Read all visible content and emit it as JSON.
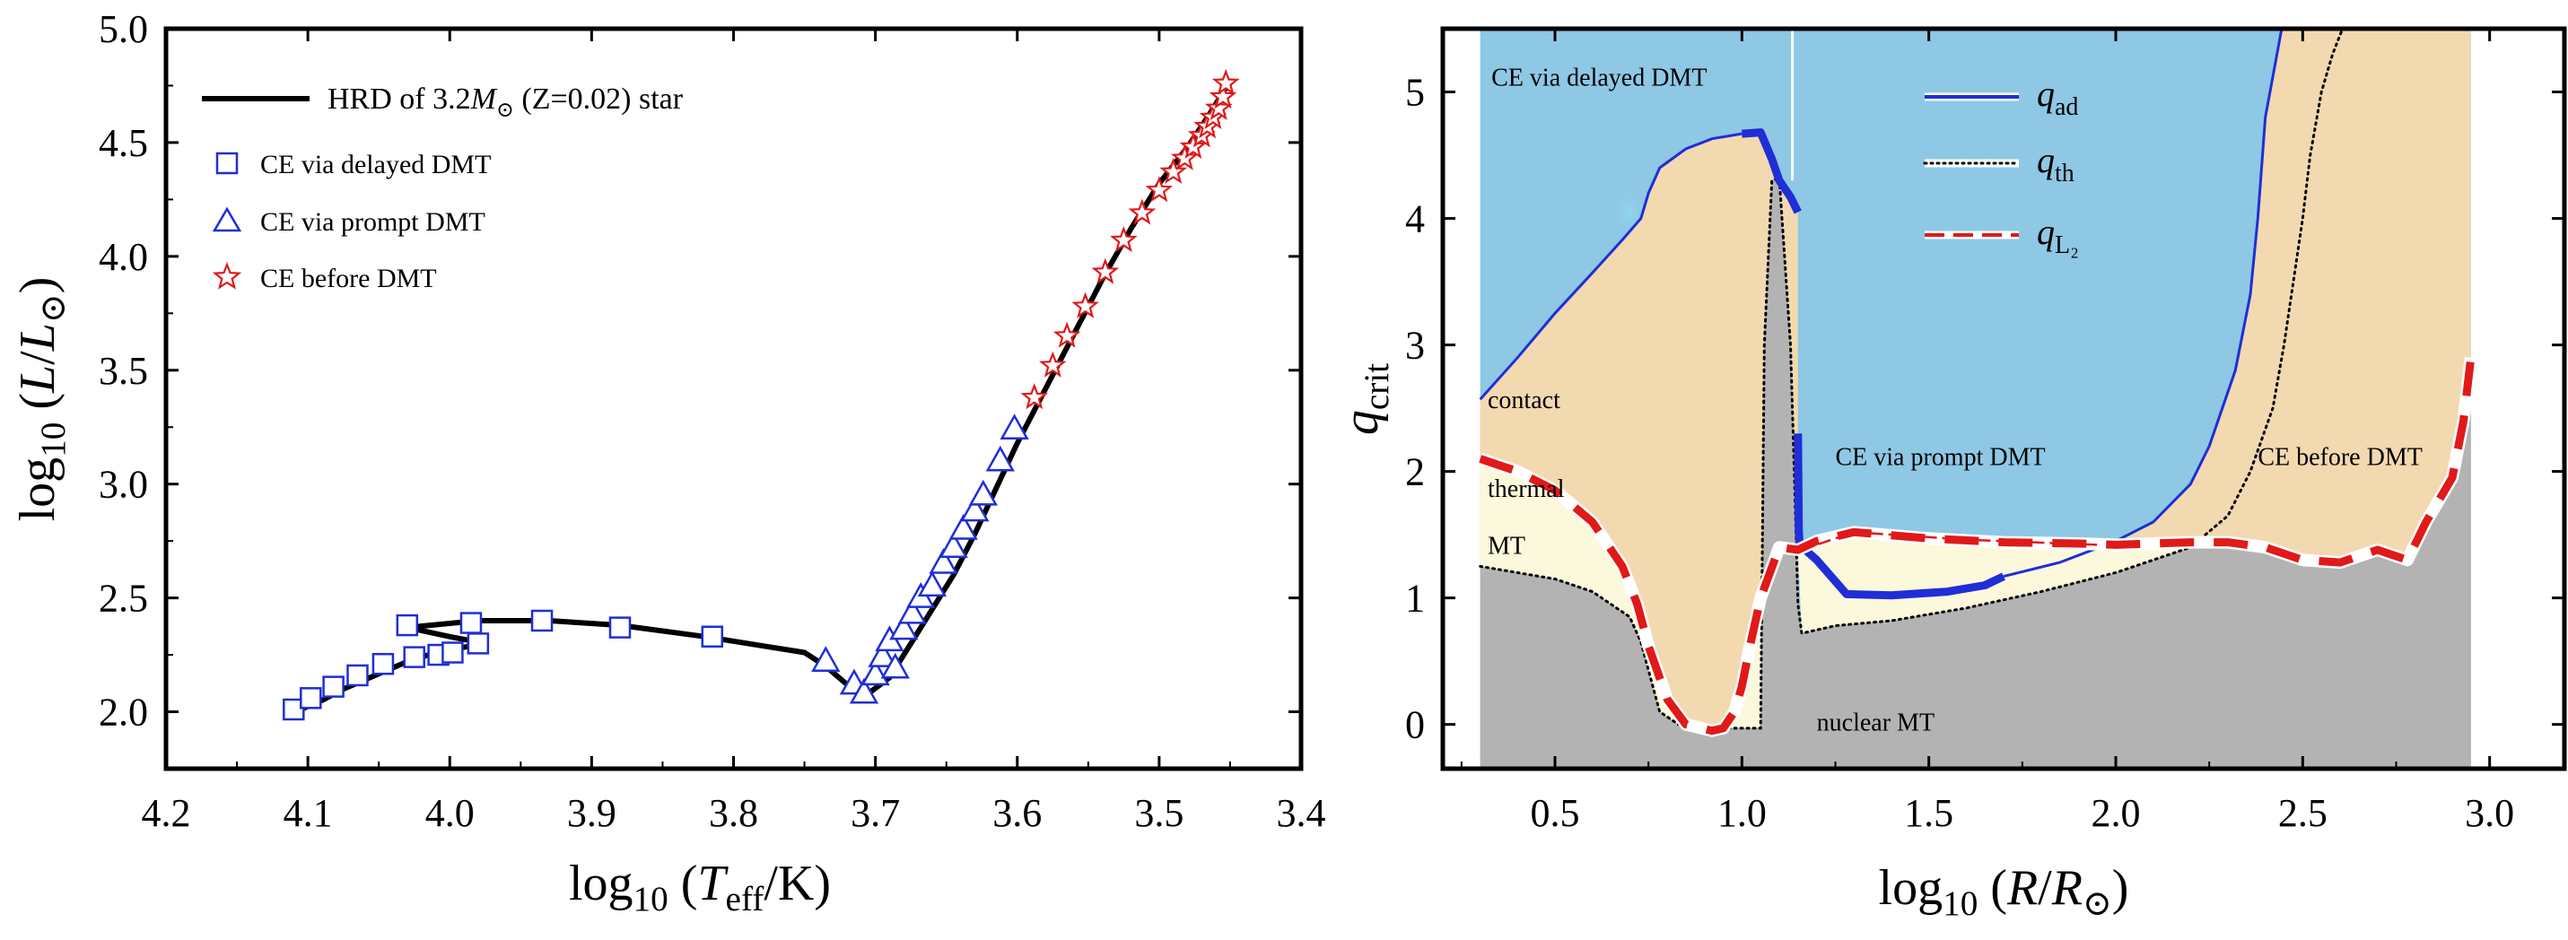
{
  "chart_data": [
    {
      "type": "line",
      "title": "",
      "xlabel": "log10 (Teff/K)",
      "ylabel": "log10 (L/L⊙)",
      "xlim": [
        4.2,
        3.4
      ],
      "ylim": [
        1.75,
        5.0
      ],
      "x_reversed": true,
      "xticks": [
        "4.2",
        "4.1",
        "4.0",
        "3.9",
        "3.8",
        "3.7",
        "3.6",
        "3.5",
        "3.4"
      ],
      "yticks": [
        "2.0",
        "2.5",
        "3.0",
        "3.5",
        "4.0",
        "4.5",
        "5.0"
      ],
      "legend": {
        "position": "top-left",
        "entries": [
          {
            "label_prefix": "HRD of 3.2",
            "label_mass_symbol": "M",
            "label_mass_sub": "⊙",
            "label_suffix": " (Z=0.02) star",
            "marker": "line",
            "color": "#000000"
          },
          {
            "label": "CE via delayed DMT",
            "marker": "square",
            "color": "#1f2ed6"
          },
          {
            "label": "CE via prompt DMT",
            "marker": "triangle",
            "color": "#1f2ed6"
          },
          {
            "label": "CE before DMT",
            "marker": "star",
            "color": "#e01919"
          }
        ]
      },
      "series": [
        {
          "name": "HRD track",
          "x": [
            4.105,
            4.09,
            4.075,
            4.06,
            4.045,
            4.03,
            4.015,
            4.0,
            3.985,
            3.975,
            4.0,
            4.03,
            3.98,
            3.93,
            3.88,
            3.82,
            3.78,
            3.75,
            3.735,
            3.72,
            3.705,
            3.69,
            3.675,
            3.66,
            3.645,
            3.63,
            3.615,
            3.6,
            3.58,
            3.56,
            3.54,
            3.52,
            3.5,
            3.48,
            3.465,
            3.452
          ],
          "y": [
            2.01,
            2.05,
            2.1,
            2.14,
            2.18,
            2.22,
            2.25,
            2.27,
            2.29,
            2.3,
            2.33,
            2.37,
            2.4,
            2.4,
            2.38,
            2.33,
            2.29,
            2.26,
            2.2,
            2.12,
            2.08,
            2.15,
            2.3,
            2.45,
            2.6,
            2.78,
            2.98,
            3.18,
            3.42,
            3.66,
            3.9,
            4.12,
            4.32,
            4.48,
            4.62,
            4.75
          ],
          "color": "#000000"
        },
        {
          "name": "CE via delayed DMT",
          "marker": "square",
          "x": [
            4.11,
            4.098,
            4.082,
            4.065,
            4.047,
            4.03,
            4.025,
            4.008,
            3.998,
            3.985,
            3.98,
            3.935,
            3.88,
            3.815
          ],
          "y": [
            2.01,
            2.06,
            2.11,
            2.16,
            2.21,
            2.38,
            2.24,
            2.25,
            2.26,
            2.39,
            2.3,
            2.4,
            2.37,
            2.33
          ]
        },
        {
          "name": "CE via prompt DMT",
          "marker": "triangle",
          "x": [
            3.735,
            3.715,
            3.708,
            3.7,
            3.695,
            3.69,
            3.686,
            3.68,
            3.674,
            3.668,
            3.66,
            3.652,
            3.645,
            3.638,
            3.63,
            3.624,
            3.612,
            3.602
          ],
          "y": [
            2.22,
            2.12,
            2.08,
            2.16,
            2.24,
            2.31,
            2.19,
            2.36,
            2.43,
            2.5,
            2.55,
            2.65,
            2.72,
            2.8,
            2.88,
            2.95,
            3.1,
            3.24
          ]
        },
        {
          "name": "CE before DMT",
          "marker": "star",
          "x": [
            3.588,
            3.575,
            3.565,
            3.552,
            3.538,
            3.525,
            3.512,
            3.5,
            3.49,
            3.482,
            3.476,
            3.47,
            3.466,
            3.462,
            3.458,
            3.455,
            3.453
          ],
          "y": [
            3.38,
            3.52,
            3.65,
            3.78,
            3.93,
            4.07,
            4.19,
            4.29,
            4.37,
            4.43,
            4.48,
            4.53,
            4.57,
            4.61,
            4.65,
            4.7,
            4.76
          ]
        }
      ]
    },
    {
      "type": "area",
      "title": "",
      "xlabel": "log10 (R/R⊙)",
      "ylabel": "qcrit",
      "xlim": [
        0.2,
        3.2
      ],
      "ylim": [
        -0.35,
        5.5
      ],
      "xticks": [
        "0.5",
        "1.0",
        "1.5",
        "2.0",
        "2.5",
        "3.0"
      ],
      "yticks": [
        "0",
        "1",
        "2",
        "3",
        "4",
        "5"
      ],
      "data_x_range": [
        0.3,
        2.95
      ],
      "legend": {
        "position": "top-center",
        "entries": [
          {
            "symbol": "q",
            "sub": "ad",
            "style": "solid",
            "color": "#1f2ed6"
          },
          {
            "symbol": "q",
            "sub": "th",
            "style": "dotted",
            "color": "#000000"
          },
          {
            "symbol": "q",
            "sub": "L₂",
            "style": "dashed",
            "color": "#e01919"
          }
        ]
      },
      "region_labels": [
        {
          "text": "CE via delayed DMT",
          "x": 0.33,
          "y": 5.05
        },
        {
          "text": "contact",
          "x": 0.32,
          "y": 2.5
        },
        {
          "text": "thermal",
          "x": 0.32,
          "y": 1.8
        },
        {
          "text": "MT",
          "x": 0.32,
          "y": 1.35
        },
        {
          "text": "CE via prompt DMT",
          "x": 1.25,
          "y": 2.05
        },
        {
          "text": "CE before DMT",
          "x": 2.38,
          "y": 2.05
        },
        {
          "text": "nuclear MT",
          "x": 1.2,
          "y": -0.05
        }
      ],
      "region_colors": {
        "ce_delayed_and_prompt": "#8ec8e5",
        "ce_before": "#f2d9b0",
        "thermal_mt": "#fcf8dc",
        "nuclear_mt": "#b3b3b3"
      },
      "series": [
        {
          "name": "q_ad (branch 1)",
          "style": "solid",
          "x": [
            0.3,
            0.4,
            0.5,
            0.6,
            0.68,
            0.73,
            0.75,
            0.78,
            0.85,
            0.92,
            1.0,
            1.05,
            1.08,
            1.1,
            1.13,
            1.15
          ],
          "y": [
            2.57,
            2.9,
            3.25,
            3.57,
            3.83,
            4.0,
            4.2,
            4.4,
            4.55,
            4.63,
            4.67,
            4.68,
            4.47,
            4.3,
            4.17,
            4.05
          ]
        },
        {
          "name": "q_ad (branch 2)",
          "style": "solid",
          "x": [
            1.15,
            1.152,
            1.154,
            1.2,
            1.28,
            1.4,
            1.55,
            1.65,
            1.7,
            1.85,
            2.0,
            2.1,
            2.2,
            2.25,
            2.32,
            2.36,
            2.38,
            2.4,
            2.45
          ],
          "y": [
            2.3,
            1.55,
            1.42,
            1.3,
            1.03,
            1.02,
            1.05,
            1.1,
            1.17,
            1.28,
            1.45,
            1.6,
            1.9,
            2.2,
            2.8,
            3.4,
            4.0,
            4.8,
            5.6
          ]
        },
        {
          "name": "q_th",
          "style": "dotted",
          "x": [
            0.3,
            0.5,
            0.6,
            0.7,
            0.73,
            0.78,
            0.83,
            0.9,
            0.95,
            1.0,
            1.05,
            1.06,
            1.08,
            1.1,
            1.13,
            1.14,
            1.15,
            1.16,
            1.25,
            1.4,
            1.6,
            1.8,
            2.0,
            2.2,
            2.3,
            2.36,
            2.42,
            2.45,
            2.5,
            2.52,
            2.55,
            2.58,
            2.62
          ],
          "y": [
            1.25,
            1.15,
            1.05,
            0.85,
            0.65,
            0.1,
            0.0,
            0.0,
            -0.03,
            -0.03,
            -0.03,
            3.0,
            4.3,
            4.32,
            3.0,
            2.0,
            0.95,
            0.72,
            0.78,
            0.82,
            0.92,
            1.05,
            1.2,
            1.4,
            1.65,
            2.0,
            2.5,
            3.0,
            4.0,
            4.5,
            5.0,
            5.3,
            5.6
          ]
        },
        {
          "name": "q_L2",
          "style": "dashed",
          "x": [
            0.3,
            0.4,
            0.5,
            0.6,
            0.68,
            0.72,
            0.75,
            0.8,
            0.85,
            0.92,
            0.95,
            0.98,
            1.0,
            1.02,
            1.05,
            1.1,
            1.15,
            1.2,
            1.3,
            1.5,
            1.7,
            1.9,
            2.0,
            2.1,
            2.2,
            2.3,
            2.4,
            2.5,
            2.6,
            2.7,
            2.78,
            2.83,
            2.9,
            2.93,
            2.95
          ],
          "y": [
            2.1,
            2.0,
            1.85,
            1.6,
            1.25,
            0.95,
            0.62,
            0.2,
            0.0,
            -0.05,
            -0.03,
            0.1,
            0.3,
            0.6,
            1.0,
            1.4,
            1.38,
            1.45,
            1.52,
            1.47,
            1.44,
            1.43,
            1.42,
            1.43,
            1.44,
            1.44,
            1.4,
            1.3,
            1.28,
            1.38,
            1.3,
            1.6,
            1.95,
            2.4,
            2.9
          ]
        }
      ]
    }
  ]
}
